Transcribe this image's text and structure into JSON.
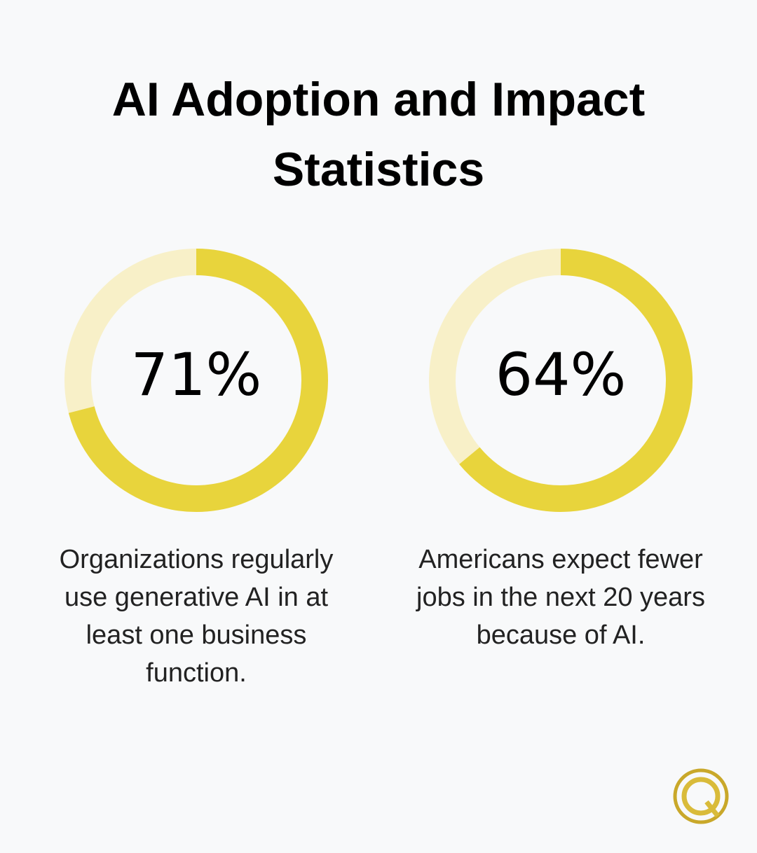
{
  "title": "AI Adoption and Impact Statistics",
  "chart_data": [
    {
      "type": "donut",
      "values": [
        71
      ],
      "value_labels": [
        "71%"
      ],
      "ylim": [
        0,
        100
      ],
      "color": "#e8d43c",
      "track_color": "#f8f0c8",
      "caption": "Organizations regularly use generative AI in at least one business function."
    },
    {
      "type": "donut",
      "values": [
        64
      ],
      "value_labels": [
        "64%"
      ],
      "ylim": [
        0,
        100
      ],
      "color": "#e8d43c",
      "track_color": "#f8f0c8",
      "caption": "Americans expect fewer jobs in the next 20 years because of AI."
    }
  ]
}
